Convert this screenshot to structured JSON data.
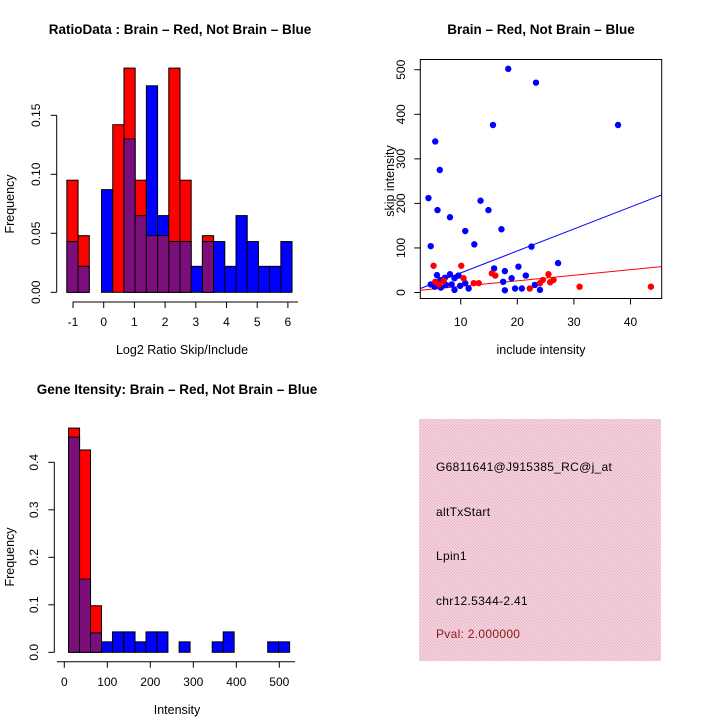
{
  "device_background": "#FFFFFF",
  "colors": {
    "red": "#FF0000",
    "blue": "#0000FF",
    "overlap_purple": "#7C0E7C",
    "axis_black": "#000000",
    "info_box_pink": "#F6AEC3",
    "info_box_pink_alt": "#E9E3E8",
    "pval_dark_red": "#8B1A1A"
  },
  "chart_data": [
    {
      "type": "bar",
      "id": "ratio-histogram",
      "title": "RatioData : Brain – Red, Not Brain – Blue",
      "xlabel": "Log2 Ratio Skip/Include",
      "ylabel": "Frequency",
      "legend": "overlaid histograms: Brain = red, Not Brain = blue, overlap = purple",
      "xticks": [
        -1,
        0,
        1,
        2,
        3,
        4,
        5,
        6
      ],
      "xtick_labels": [
        "-1",
        "0",
        "1",
        "2",
        "3",
        "4",
        "5",
        "6"
      ],
      "yticks": [
        0.0,
        0.05,
        0.1,
        0.15
      ],
      "ytick_labels": [
        "0.00",
        "0.05",
        "0.10",
        "0.15"
      ],
      "xlim": [
        -1.5,
        6.5
      ],
      "ylim": [
        0,
        0.197
      ],
      "bars": [
        {
          "x0": -1.2,
          "x1": -0.835,
          "red": 0.095,
          "blue": 0.043
        },
        {
          "x0": -0.835,
          "x1": -0.47,
          "red": 0.048,
          "blue": 0.022
        },
        {
          "x0": -0.07,
          "x1": 0.295,
          "red": 0,
          "blue": 0.087
        },
        {
          "x0": 0.295,
          "x1": 0.66,
          "red": 0.142,
          "blue": 0
        },
        {
          "x0": 0.66,
          "x1": 1.025,
          "red": 0.19,
          "blue": 0.13
        },
        {
          "x0": 1.025,
          "x1": 1.39,
          "red": 0.095,
          "blue": 0.065
        },
        {
          "x0": 1.39,
          "x1": 1.755,
          "red": 0.048,
          "blue": 0.175
        },
        {
          "x0": 1.755,
          "x1": 2.12,
          "red": 0.048,
          "blue": 0.065
        },
        {
          "x0": 2.12,
          "x1": 2.485,
          "red": 0.19,
          "blue": 0.043
        },
        {
          "x0": 2.485,
          "x1": 2.85,
          "red": 0.095,
          "blue": 0.043
        },
        {
          "x0": 2.85,
          "x1": 3.215,
          "red": 0,
          "blue": 0.022
        },
        {
          "x0": 3.215,
          "x1": 3.58,
          "red": 0.048,
          "blue": 0.043
        },
        {
          "x0": 3.58,
          "x1": 3.945,
          "red": 0,
          "blue": 0.043
        },
        {
          "x0": 3.945,
          "x1": 4.31,
          "red": 0,
          "blue": 0.022
        },
        {
          "x0": 4.31,
          "x1": 4.675,
          "red": 0,
          "blue": 0.065
        },
        {
          "x0": 4.675,
          "x1": 5.04,
          "red": 0,
          "blue": 0.043
        },
        {
          "x0": 5.04,
          "x1": 5.405,
          "red": 0,
          "blue": 0.022
        },
        {
          "x0": 5.405,
          "x1": 5.77,
          "red": 0,
          "blue": 0.022
        },
        {
          "x0": 5.77,
          "x1": 6.135,
          "red": 0,
          "blue": 0.043
        }
      ]
    },
    {
      "type": "scatter",
      "id": "intensity-scatter",
      "title": "Brain – Red, Not Brain – Blue",
      "xlabel": "include intensity",
      "ylabel": "skip intensity",
      "xticks": [
        10,
        20,
        30,
        40
      ],
      "xtick_labels": [
        "10",
        "20",
        "30",
        "40"
      ],
      "yticks": [
        0,
        100,
        200,
        300,
        400,
        500
      ],
      "ytick_labels": [
        "0",
        "100",
        "200",
        "300",
        "400",
        "500"
      ],
      "xlim": [
        2.86,
        45.5
      ],
      "ylim": [
        -13.5,
        523
      ],
      "series": [
        {
          "name": "Not Brain",
          "color": "blue",
          "points": [
            [
              18.4,
              502
            ],
            [
              23.3,
              471
            ],
            [
              15.7,
              376
            ],
            [
              37.8,
              376
            ],
            [
              5.5,
              339
            ],
            [
              6.3,
              275
            ],
            [
              4.3,
              212
            ],
            [
              13.5,
              206
            ],
            [
              5.9,
              185
            ],
            [
              14.9,
              185
            ],
            [
              8.1,
              169
            ],
            [
              17.2,
              142
            ],
            [
              10.8,
              138
            ],
            [
              12.4,
              108
            ],
            [
              4.7,
              104
            ],
            [
              22.5,
              103
            ],
            [
              27.2,
              66
            ],
            [
              20.2,
              58
            ],
            [
              15.9,
              54
            ],
            [
              17.8,
              48
            ],
            [
              8.1,
              41
            ],
            [
              5.8,
              39
            ],
            [
              9.6,
              38
            ],
            [
              21.5,
              38
            ],
            [
              7.2,
              33
            ],
            [
              8.9,
              32
            ],
            [
              19.0,
              32
            ],
            [
              6.4,
              28
            ],
            [
              17.5,
              24
            ],
            [
              10.8,
              21
            ],
            [
              4.7,
              18
            ],
            [
              7.4,
              17
            ],
            [
              8.4,
              18
            ],
            [
              23.1,
              17
            ],
            [
              9.9,
              15
            ],
            [
              5.4,
              13
            ],
            [
              6.5,
              11
            ],
            [
              11.4,
              9
            ],
            [
              19.6,
              9
            ],
            [
              20.8,
              9
            ],
            [
              8.9,
              6
            ],
            [
              17.8,
              5
            ],
            [
              24.0,
              6
            ]
          ]
        },
        {
          "name": "Brain",
          "color": "red",
          "points": [
            [
              5.2,
              60
            ],
            [
              10.1,
              60
            ],
            [
              15.5,
              43
            ],
            [
              25.5,
              41
            ],
            [
              16.1,
              38
            ],
            [
              10.5,
              32
            ],
            [
              24.5,
              28
            ],
            [
              26.4,
              28
            ],
            [
              7.0,
              26
            ],
            [
              5.5,
              24
            ],
            [
              25.8,
              23
            ],
            [
              12.3,
              21
            ],
            [
              13.2,
              21
            ],
            [
              24.0,
              21
            ],
            [
              6.2,
              18
            ],
            [
              31.0,
              13
            ],
            [
              43.6,
              13
            ],
            [
              22.2,
              9
            ]
          ]
        }
      ],
      "fit_lines": [
        {
          "color": "blue",
          "x1": 2.9,
          "y1": 9,
          "x2": 45.5,
          "y2": 219
        },
        {
          "color": "red",
          "x1": 2.9,
          "y1": 5,
          "x2": 45.5,
          "y2": 58
        }
      ]
    },
    {
      "type": "bar",
      "id": "gene-intensity-histogram",
      "title": "Gene Itensity: Brain – Red, Not Brain – Blue",
      "xlabel": "Intensity",
      "ylabel": "Frequency",
      "legend": "overlaid histograms: Brain = red, Not Brain = blue, overlap = purple",
      "xticks": [
        0,
        100,
        200,
        300,
        400,
        500
      ],
      "xtick_labels": [
        "0",
        "100",
        "200",
        "300",
        "400",
        "500"
      ],
      "yticks": [
        0.0,
        0.1,
        0.2,
        0.3,
        0.4
      ],
      "ytick_labels": [
        "0.0",
        "0.1",
        "0.2",
        "0.3",
        "0.4"
      ],
      "xlim": [
        -23,
        560
      ],
      "ylim": [
        0,
        0.489
      ],
      "bars": [
        {
          "x0": 10,
          "x1": 35.5,
          "red": 0.472,
          "blue": 0.453
        },
        {
          "x0": 35.5,
          "x1": 61,
          "red": 0.426,
          "blue": 0.154
        },
        {
          "x0": 61,
          "x1": 86.5,
          "red": 0.098,
          "blue": 0.041
        },
        {
          "x0": 86.5,
          "x1": 112,
          "red": 0,
          "blue": 0.022
        },
        {
          "x0": 112,
          "x1": 137.5,
          "red": 0,
          "blue": 0.043
        },
        {
          "x0": 139,
          "x1": 164.5,
          "red": 0,
          "blue": 0.043
        },
        {
          "x0": 164.5,
          "x1": 190,
          "red": 0,
          "blue": 0.022
        },
        {
          "x0": 190,
          "x1": 215.5,
          "red": 0,
          "blue": 0.043
        },
        {
          "x0": 215.5,
          "x1": 241,
          "red": 0,
          "blue": 0.043
        },
        {
          "x0": 267,
          "x1": 292.5,
          "red": 0,
          "blue": 0.022
        },
        {
          "x0": 344,
          "x1": 369.5,
          "red": 0,
          "blue": 0.022
        },
        {
          "x0": 369.5,
          "x1": 395,
          "red": 0,
          "blue": 0.043
        },
        {
          "x0": 473,
          "x1": 498.5,
          "red": 0,
          "blue": 0.022
        },
        {
          "x0": 498.5,
          "x1": 524,
          "red": 0,
          "blue": 0.022
        }
      ]
    }
  ],
  "info_panel": {
    "lines": [
      {
        "text": "G6811641@J915385_RC@j_at",
        "color": "black"
      },
      {
        "text": "altTxStart",
        "color": "black"
      },
      {
        "text": "Lpin1",
        "color": "black"
      },
      {
        "text": "chr12.5344-2.41",
        "color": "black"
      },
      {
        "text": "Pval: 2.000000",
        "color": "dark_red"
      }
    ]
  }
}
